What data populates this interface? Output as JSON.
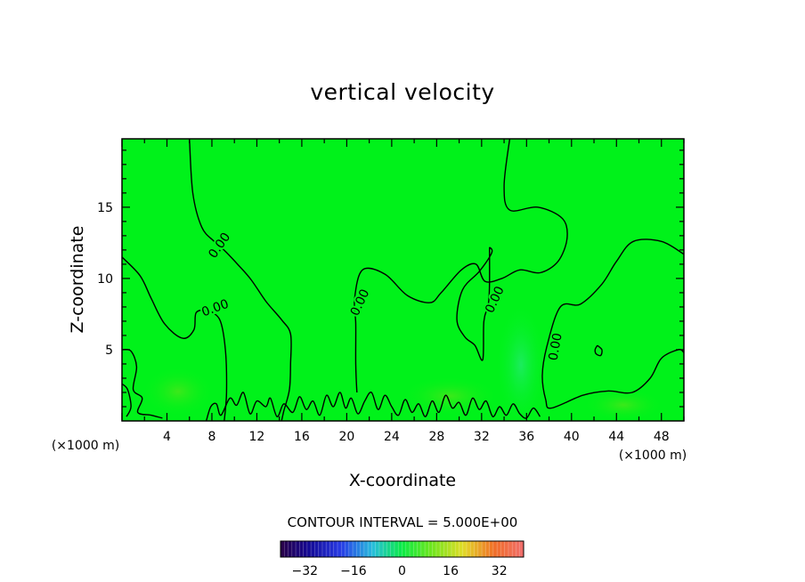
{
  "chart_data": {
    "type": "contour",
    "title": "vertical velocity",
    "xlabel": "X-coordinate",
    "ylabel": "Z-coordinate",
    "x_unit": "(×1000 m)",
    "xlim": [
      0,
      50
    ],
    "ylim": [
      0,
      19.8
    ],
    "x_ticks": [
      4,
      8,
      12,
      16,
      20,
      24,
      28,
      32,
      36,
      40,
      44,
      48
    ],
    "y_ticks": [
      5,
      10,
      15
    ],
    "contour_level_label": "0.00",
    "contour_interval_text": "CONTOUR INTERVAL = 5.000E+00",
    "colorbar": {
      "min": -40,
      "max": 40,
      "tick_values": [
        -32,
        -16,
        0,
        16,
        32
      ],
      "tick_labels": [
        "−32",
        "−16",
        "0",
        "16",
        "32"
      ]
    },
    "field_color": "#00f21a",
    "zero_contours": [
      {
        "points": [
          [
            6.0,
            19.8
          ],
          [
            6.3,
            16.0
          ],
          [
            7.1,
            13.6
          ],
          [
            8.2,
            12.6
          ],
          [
            9.2,
            11.9
          ],
          [
            10.4,
            10.9
          ],
          [
            11.5,
            9.9
          ],
          [
            12.8,
            8.4
          ],
          [
            14.2,
            7.1
          ],
          [
            15.0,
            6.1
          ],
          [
            15.0,
            4.0
          ],
          [
            14.9,
            2.2
          ],
          [
            14.4,
            0.7
          ],
          [
            14.2,
            0
          ]
        ]
      },
      {
        "points": [
          [
            0,
            11.5
          ],
          [
            1.6,
            10.2
          ],
          [
            2.6,
            8.6
          ],
          [
            3.8,
            6.8
          ],
          [
            5.4,
            5.8
          ],
          [
            6.4,
            6.4
          ],
          [
            6.6,
            7.6
          ],
          [
            7.6,
            7.7
          ],
          [
            8.7,
            7.1
          ],
          [
            9.2,
            5.0
          ],
          [
            9.3,
            2.0
          ],
          [
            9.1,
            0
          ]
        ]
      },
      {
        "points": [
          [
            34.5,
            19.8
          ],
          [
            34.0,
            16.5
          ],
          [
            34.5,
            14.8
          ],
          [
            37.0,
            15.0
          ],
          [
            39.2,
            14.2
          ],
          [
            39.6,
            12.8
          ],
          [
            38.8,
            11.2
          ],
          [
            37.2,
            10.4
          ],
          [
            35.4,
            10.6
          ],
          [
            33.8,
            10.0
          ],
          [
            32.3,
            9.8
          ],
          [
            31.5,
            11.0
          ],
          [
            30.2,
            10.6
          ],
          [
            28.4,
            9.0
          ],
          [
            27.4,
            8.3
          ],
          [
            25.4,
            8.8
          ],
          [
            23.4,
            10.3
          ],
          [
            21.4,
            10.6
          ],
          [
            20.7,
            8.6
          ],
          [
            20.8,
            6.8
          ],
          [
            20.8,
            4.0
          ],
          [
            20.9,
            2.0
          ]
        ]
      },
      {
        "points": [
          [
            32.7,
            12.2
          ],
          [
            32.9,
            11.8
          ],
          [
            31.8,
            10.5
          ],
          [
            30.3,
            9.2
          ],
          [
            29.8,
            7.1
          ],
          [
            30.5,
            5.9
          ],
          [
            31.4,
            5.3
          ],
          [
            32.1,
            4.3
          ],
          [
            32.2,
            7.0
          ],
          [
            32.6,
            8.2
          ],
          [
            32.7,
            9.6
          ],
          [
            32.7,
            12.2
          ]
        ]
      },
      {
        "points": [
          [
            50,
            11.7
          ],
          [
            48.0,
            12.6
          ],
          [
            45.5,
            12.6
          ],
          [
            44.0,
            11.2
          ],
          [
            42.7,
            9.6
          ],
          [
            40.8,
            8.2
          ],
          [
            39.0,
            8.0
          ],
          [
            37.8,
            5.2
          ],
          [
            37.4,
            3.2
          ],
          [
            37.7,
            1.5
          ],
          [
            38.2,
            0.9
          ],
          [
            41.0,
            1.8
          ],
          [
            43.2,
            2.1
          ],
          [
            45.4,
            2.0
          ],
          [
            47.0,
            3.0
          ],
          [
            48.0,
            4.4
          ],
          [
            49.5,
            5.0
          ],
          [
            50,
            4.8
          ]
        ]
      },
      {
        "points": [
          [
            42.3,
            5.3
          ],
          [
            42.7,
            5.0
          ],
          [
            42.6,
            4.6
          ],
          [
            42.2,
            4.7
          ],
          [
            42.1,
            5.0
          ],
          [
            42.3,
            5.3
          ]
        ]
      },
      {
        "points": [
          [
            0,
            5.0
          ],
          [
            0.8,
            4.9
          ],
          [
            1.3,
            3.8
          ],
          [
            1.0,
            2.2
          ],
          [
            1.8,
            1.6
          ],
          [
            1.4,
            0.6
          ],
          [
            2.6,
            0.4
          ],
          [
            3.6,
            0.2
          ]
        ]
      },
      {
        "points": [
          [
            0,
            2.6
          ],
          [
            0.5,
            2.2
          ],
          [
            0.8,
            1.0
          ],
          [
            0.4,
            0.3
          ]
        ]
      }
    ],
    "surface_zero_contour": [
      [
        7.5,
        0
      ],
      [
        7.9,
        1.0
      ],
      [
        8.4,
        1.2
      ],
      [
        8.8,
        0.4
      ],
      [
        9.6,
        1.6
      ],
      [
        10.2,
        1.1
      ],
      [
        10.8,
        2.0
      ],
      [
        11.4,
        0.5
      ],
      [
        12.0,
        1.4
      ],
      [
        12.8,
        1.0
      ],
      [
        13.2,
        1.6
      ],
      [
        13.8,
        0.3
      ],
      [
        14.4,
        1.2
      ],
      [
        15.2,
        0.6
      ],
      [
        15.8,
        1.7
      ],
      [
        16.4,
        0.8
      ],
      [
        17.0,
        1.4
      ],
      [
        17.6,
        0.4
      ],
      [
        18.2,
        1.8
      ],
      [
        18.8,
        1.0
      ],
      [
        19.4,
        2.0
      ],
      [
        19.9,
        0.9
      ],
      [
        20.4,
        1.6
      ],
      [
        21.0,
        0.5
      ],
      [
        21.6,
        1.4
      ],
      [
        22.2,
        2.0
      ],
      [
        22.8,
        0.8
      ],
      [
        23.4,
        1.8
      ],
      [
        24.0,
        1.0
      ],
      [
        24.6,
        0.4
      ],
      [
        25.2,
        1.5
      ],
      [
        25.8,
        0.6
      ],
      [
        26.4,
        1.2
      ],
      [
        27.0,
        0.3
      ],
      [
        27.6,
        1.4
      ],
      [
        28.2,
        0.6
      ],
      [
        28.8,
        1.8
      ],
      [
        29.4,
        0.9
      ],
      [
        30.0,
        1.3
      ],
      [
        30.6,
        0.4
      ],
      [
        31.2,
        1.6
      ],
      [
        31.8,
        0.8
      ],
      [
        32.4,
        1.4
      ],
      [
        33.0,
        0.3
      ],
      [
        33.6,
        1.0
      ],
      [
        34.2,
        0.4
      ],
      [
        34.8,
        1.2
      ],
      [
        35.4,
        0.5
      ],
      [
        36.0,
        0.2
      ],
      [
        36.6,
        0.9
      ],
      [
        37.2,
        0.3
      ]
    ],
    "label_positions": [
      [
        8.7,
        12.3,
        "0.00",
        -55
      ],
      [
        8.3,
        7.9,
        "0.00",
        -20
      ],
      [
        21.2,
        8.3,
        "0.00",
        -65
      ],
      [
        33.2,
        8.5,
        "0.00",
        -65
      ],
      [
        38.6,
        5.2,
        "0.00",
        -80
      ]
    ]
  }
}
